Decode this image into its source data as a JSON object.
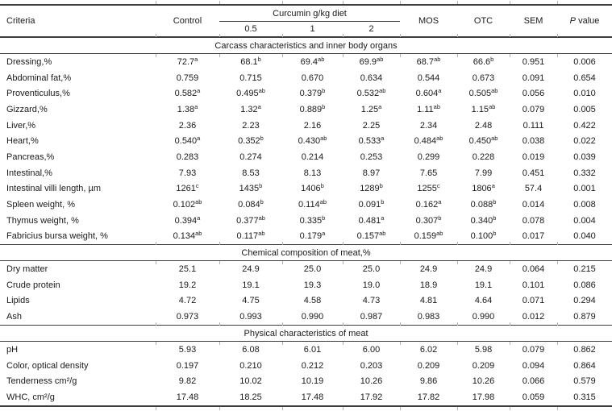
{
  "colors": {
    "rule": "#3c3c3c",
    "tick": "#b3b3b3",
    "text": "#1a1a1a",
    "background": "#ffffff"
  },
  "table": {
    "header": {
      "criteria": "Criteria",
      "control": "Control",
      "curcumin_group": "Curcumin g/kg diet",
      "curcumin_levels": [
        "0.5",
        "1",
        "2"
      ],
      "mos": "MOS",
      "otc": "OTC",
      "sem": "SEM",
      "p_italic": "P",
      "p_rest": " value"
    },
    "column_keys": [
      "control",
      "curcumin-0.5",
      "curcumin-1",
      "curcumin-2",
      "mos",
      "otc",
      "sem",
      "p-value"
    ],
    "sections": [
      {
        "title": "Carcass characteristics and inner body organs",
        "rows": [
          {
            "criteria": "Dressing,%",
            "values": [
              "72.7^a",
              "68.1^b",
              "69.4^ab",
              "69.9^ab",
              "68.7^ab",
              "66.6^b",
              "0.951",
              "0.006"
            ]
          },
          {
            "criteria": "Abdominal fat,%",
            "values": [
              "0.759",
              "0.715",
              "0.670",
              "0.634",
              "0.544",
              "0.673",
              "0.091",
              "0.654"
            ]
          },
          {
            "criteria": "Proventiculus,%",
            "values": [
              "0.582^a",
              "0.495^ab",
              "0.379^b",
              "0.532^ab",
              "0.604^a",
              "0.505^ab",
              "0.056",
              "0.010"
            ]
          },
          {
            "criteria": "Gizzard,%",
            "values": [
              "1.38^a",
              "1.32^a",
              "0.889^b",
              "1.25^a",
              "1.11^ab",
              "1.15^ab",
              "0.079",
              "0.005"
            ]
          },
          {
            "criteria": "Liver,%",
            "values": [
              "2.36",
              "2.23",
              "2.16",
              "2.25",
              "2.34",
              "2.48",
              "0.111",
              "0.422"
            ]
          },
          {
            "criteria": "Heart,%",
            "values": [
              "0.540^a",
              "0.352^b",
              "0.430^ab",
              "0.533^a",
              "0.484^ab",
              "0.450^ab",
              "0.038",
              "0.022"
            ]
          },
          {
            "criteria": "Pancreas,%",
            "values": [
              "0.283",
              "0.274",
              "0.214",
              "0.253",
              "0.299",
              "0.228",
              "0.019",
              "0.039"
            ]
          },
          {
            "criteria": "Intestinal,%",
            "values": [
              "7.93",
              "8.53",
              "8.13",
              "8.97",
              "7.65",
              "7.99",
              "0.451",
              "0.332"
            ]
          },
          {
            "criteria": "Intestinal villi length, µm",
            "values": [
              "1261^c",
              "1435^b",
              "1406^b",
              "1289^b",
              "1255^c",
              "1806^a",
              "57.4",
              "0.001"
            ]
          },
          {
            "criteria": "Spleen weight, %",
            "values": [
              "0.102^ab",
              "0.084^b",
              "0.114^ab",
              "0.091^b",
              "0.162^a",
              "0.088^b",
              "0.014",
              "0.008"
            ]
          },
          {
            "criteria": "Thymus weight, %",
            "values": [
              "0.394^a",
              "0.377^ab",
              "0.335^b",
              "0.481^a",
              "0.307^b",
              "0.340^b",
              "0.078",
              "0.004"
            ]
          },
          {
            "criteria": "Fabricius bursa weight, %",
            "values": [
              "0.134^ab",
              "0.117^ab",
              "0.179^a",
              "0.157^ab",
              "0.159^ab",
              "0.100^b",
              "0.017",
              "0.040"
            ]
          }
        ]
      },
      {
        "title": "Chemical composition of meat,%",
        "rows": [
          {
            "criteria": "Dry matter",
            "values": [
              "25.1",
              "24.9",
              "25.0",
              "25.0",
              "24.9",
              "24.9",
              "0.064",
              "0.215"
            ]
          },
          {
            "criteria": "Crude protein",
            "values": [
              "19.2",
              "19.1",
              "19.3",
              "19.0",
              "18.9",
              "19.1",
              "0.101",
              "0.086"
            ]
          },
          {
            "criteria": "Lipids",
            "values": [
              "4.72",
              "4.75",
              "4.58",
              "4.73",
              "4.81",
              "4.64",
              "0.071",
              "0.294"
            ]
          },
          {
            "criteria": "Ash",
            "values": [
              "0.973",
              "0.993",
              "0.990",
              "0.987",
              "0.983",
              "0.990",
              "0.012",
              "0.879"
            ]
          }
        ]
      },
      {
        "title": "Physical characteristics of meat",
        "rows": [
          {
            "criteria": "pH",
            "values": [
              "5.93",
              "6.08",
              "6.01",
              "6.00",
              "6.02",
              "5.98",
              "0.079",
              "0.862"
            ]
          },
          {
            "criteria": "Color, optical density",
            "values": [
              "0.197",
              "0.210",
              "0.212",
              "0.203",
              "0.209",
              "0.209",
              "0.094",
              "0.864"
            ]
          },
          {
            "criteria": "Tenderness cm²/g",
            "values": [
              "9.82",
              "10.02",
              "10.19",
              "10.26",
              "9.86",
              "10.26",
              "0.066",
              "0.579"
            ]
          },
          {
            "criteria": "WHC, cm²/g",
            "values": [
              "17.48",
              "18.25",
              "17.48",
              "17.92",
              "17.82",
              "17.98",
              "0.059",
              "0.315"
            ]
          }
        ]
      }
    ]
  }
}
